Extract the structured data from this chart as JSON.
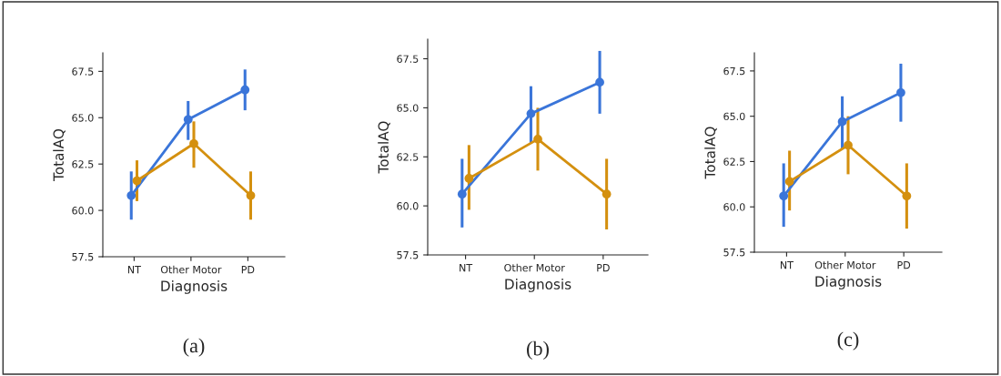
{
  "chart_data": [
    {
      "type": "line",
      "xlabel": "Diagnosis",
      "ylabel": "TotalAQ",
      "categories": [
        "NT",
        "Other Motor",
        "PD"
      ],
      "ylim": [
        57.5,
        68.5
      ],
      "yticks": [
        {
          "value": 57.5,
          "label": "57.5"
        },
        {
          "value": 60.0,
          "label": "60.0"
        },
        {
          "value": 62.5,
          "label": "62.5"
        },
        {
          "value": 65.0,
          "label": "65.0"
        },
        {
          "value": 67.5,
          "label": "67.5"
        }
      ],
      "marker": "circle",
      "grid": false,
      "legend": false,
      "annotations": [
        "(a)"
      ],
      "series": [
        {
          "color": "#3a75d9",
          "values": [
            60.8,
            64.9,
            66.5
          ],
          "errors": [
            [
              59.5,
              62.1
            ],
            [
              63.8,
              65.9
            ],
            [
              65.4,
              67.6
            ]
          ]
        },
        {
          "color": "#d4900f",
          "values": [
            61.6,
            63.6,
            60.8
          ],
          "errors": [
            [
              60.5,
              62.7
            ],
            [
              62.3,
              64.8
            ],
            [
              59.5,
              62.1
            ]
          ]
        }
      ]
    },
    {
      "type": "line",
      "xlabel": "Diagnosis",
      "ylabel": "TotalAQ",
      "categories": [
        "NT",
        "Other Motor",
        "PD"
      ],
      "ylim": [
        57.5,
        68.5
      ],
      "yticks": [
        {
          "value": 57.5,
          "label": "57.5"
        },
        {
          "value": 60.0,
          "label": "60.0"
        },
        {
          "value": 62.5,
          "label": "62.5"
        },
        {
          "value": 65.0,
          "label": "65.0"
        },
        {
          "value": 67.5,
          "label": "67.5"
        }
      ],
      "marker": "circle",
      "grid": false,
      "legend": false,
      "annotations": [
        "(b)"
      ],
      "series": [
        {
          "color": "#3a75d9",
          "values": [
            60.6,
            64.7,
            66.3
          ],
          "errors": [
            [
              58.9,
              62.4
            ],
            [
              63.2,
              66.1
            ],
            [
              64.7,
              67.9
            ]
          ]
        },
        {
          "color": "#d4900f",
          "values": [
            61.4,
            63.4,
            60.6
          ],
          "errors": [
            [
              59.8,
              63.1
            ],
            [
              61.8,
              65.0
            ],
            [
              58.8,
              62.4
            ]
          ]
        }
      ]
    },
    {
      "type": "line",
      "xlabel": "Diagnosis",
      "ylabel": "TotalAQ",
      "categories": [
        "NT",
        "Other Motor",
        "PD"
      ],
      "ylim": [
        57.5,
        68.5
      ],
      "yticks": [
        {
          "value": 57.5,
          "label": "57.5"
        },
        {
          "value": 60.0,
          "label": "60.0"
        },
        {
          "value": 62.5,
          "label": "62.5"
        },
        {
          "value": 65.0,
          "label": "65.0"
        },
        {
          "value": 67.5,
          "label": "67.5"
        }
      ],
      "marker": "circle",
      "grid": false,
      "legend": false,
      "annotations": [
        "(c)"
      ],
      "series": [
        {
          "color": "#3a75d9",
          "values": [
            60.6,
            64.7,
            66.3
          ],
          "errors": [
            [
              58.9,
              62.4
            ],
            [
              63.2,
              66.1
            ],
            [
              64.7,
              67.9
            ]
          ]
        },
        {
          "color": "#d4900f",
          "values": [
            61.4,
            63.4,
            60.6
          ],
          "errors": [
            [
              59.8,
              63.1
            ],
            [
              61.8,
              65.0
            ],
            [
              58.8,
              62.4
            ]
          ]
        }
      ]
    }
  ]
}
